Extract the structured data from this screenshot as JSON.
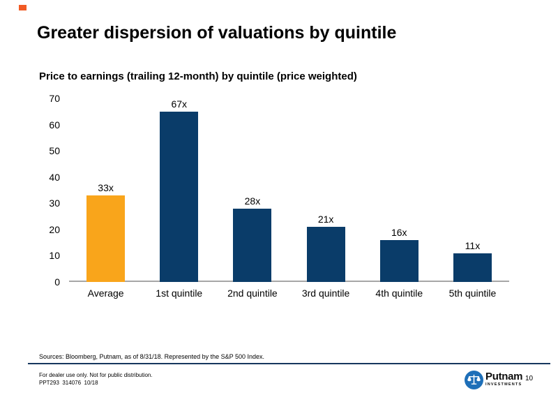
{
  "slide": {
    "title": "Greater dispersion of valuations by quintile"
  },
  "chart_data": {
    "type": "bar",
    "title": "Price to earnings (trailing 12-month) by quintile (price weighted)",
    "categories": [
      "Average",
      "1st quintile",
      "2nd quintile",
      "3rd quintile",
      "4th quintile",
      "5th quintile"
    ],
    "values": [
      33,
      67,
      28,
      21,
      16,
      11
    ],
    "value_labels": [
      "33x",
      "67x",
      "28x",
      "21x",
      "16x",
      "11x"
    ],
    "bar_colors": [
      "#F9A51B",
      "#0A3C69",
      "#0A3C69",
      "#0A3C69",
      "#0A3C69",
      "#0A3C69"
    ],
    "xlabel": "",
    "ylabel": "",
    "ylim": [
      0,
      70
    ],
    "yticks": [
      0,
      10,
      20,
      30,
      40,
      50,
      60,
      70
    ],
    "grid": false,
    "legend": null
  },
  "footnote": {
    "sources": "Sources: Bloomberg, Putnam, as of 8/31/18. Represented by the S&P 500 Index.",
    "disclaimer": "For dealer use only. Not for public distribution.",
    "doc_code": "PPT293  314076  10/18"
  },
  "branding": {
    "logo_name": "Putnam",
    "logo_sub": "INVESTMENTS",
    "page_number": "10"
  },
  "colors": {
    "accent_square": "#F15A24",
    "bar_gold": "#F9A51B",
    "bar_navy": "#0A3C69",
    "axis_line": "#A6A6A6",
    "footer_rule": "#17375E",
    "logo_blue": "#1E6FB8"
  }
}
